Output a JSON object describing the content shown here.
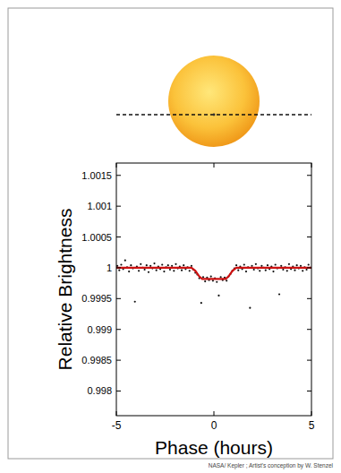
{
  "chart_data": {
    "type": "scatter",
    "xlabel": "Phase (hours)",
    "ylabel": "Relative Brightness",
    "annotations": [
      "NASA/ Kepler ; Artist's conception by W. Stenzel"
    ],
    "xlim": [
      -5,
      5
    ],
    "xticks": [
      -5,
      0,
      5
    ],
    "ylim": [
      0.9976,
      1.0017
    ],
    "yticks": [
      0.998,
      0.9985,
      0.999,
      0.9995,
      1,
      1.0005,
      1.001,
      1.0015
    ],
    "grid": false,
    "series": [
      {
        "type": "scatter",
        "color": "#111111",
        "marker": "dot",
        "x": [
          -4.95,
          -4.85,
          -4.75,
          -4.65,
          -4.55,
          -4.45,
          -4.35,
          -4.25,
          -4.15,
          -4.05,
          -3.95,
          -3.85,
          -3.75,
          -3.65,
          -3.55,
          -3.45,
          -3.35,
          -3.25,
          -3.15,
          -3.05,
          -2.95,
          -2.85,
          -2.75,
          -2.65,
          -2.55,
          -2.45,
          -2.35,
          -2.25,
          -2.15,
          -2.05,
          -1.95,
          -1.85,
          -1.75,
          -1.65,
          -1.55,
          -1.45,
          -1.35,
          -1.25,
          -1.15,
          -1.05,
          -0.95,
          -0.85,
          -0.75,
          -0.65,
          -0.55,
          -0.45,
          -0.35,
          -0.25,
          -0.15,
          -0.05,
          0.05,
          0.15,
          0.25,
          0.35,
          0.45,
          0.55,
          0.65,
          0.75,
          0.85,
          0.95,
          1.05,
          1.15,
          1.25,
          1.35,
          1.45,
          1.55,
          1.65,
          1.75,
          1.85,
          1.95,
          2.05,
          2.15,
          2.25,
          2.35,
          2.45,
          2.55,
          2.65,
          2.75,
          2.85,
          2.95,
          3.05,
          3.15,
          3.25,
          3.35,
          3.45,
          3.55,
          3.65,
          3.75,
          3.85,
          3.95,
          4.05,
          4.15,
          4.25,
          4.35,
          4.45,
          4.55,
          4.65,
          4.75,
          4.85,
          4.95
        ],
        "values": [
          1.00003,
          0.99996,
          1.00005,
          0.99998,
          1.00012,
          1.00001,
          0.99994,
          1.00004,
          0.99999,
          0.99945,
          1.00002,
          0.99995,
          1.00006,
          1.0,
          0.99997,
          1.00004,
          0.99993,
          1.00003,
          0.99999,
          1.00007,
          0.99996,
          1.00002,
          0.99998,
          1.00005,
          0.99994,
          1.00001,
          1.00004,
          0.99997,
          1.00003,
          0.99995,
          1.00006,
          0.99999,
          1.00002,
          0.99996,
          1.00004,
          0.99998,
          1.00001,
          0.99995,
          1.00003,
          0.99997,
          0.99992,
          0.99989,
          0.99983,
          0.99943,
          0.99985,
          0.99978,
          0.99984,
          0.9998,
          0.99986,
          0.99979,
          0.99983,
          0.99977,
          0.99955,
          0.99985,
          0.9998,
          0.99984,
          0.99979,
          0.99986,
          0.9999,
          0.99995,
          0.99999,
          1.00004,
          0.99996,
          1.00002,
          0.99998,
          1.00005,
          0.99994,
          1.00001,
          0.99935,
          1.00003,
          0.99997,
          1.00006,
          0.99999,
          0.99995,
          1.00003,
          1.0,
          0.99996,
          1.00004,
          0.99998,
          1.00002,
          0.99994,
          1.00005,
          0.99999,
          0.99957,
          1.00003,
          0.99997,
          1.00001,
          0.99995,
          1.00006,
          0.99998,
          1.00002,
          0.99996,
          1.00004,
          0.99999,
          1.00003,
          0.99995,
          1.00001,
          0.99997,
          1.00005,
          1.0
        ]
      },
      {
        "type": "line",
        "color": "#cc1111",
        "line_style": "solid",
        "x": [
          -5,
          -1.15,
          -0.95,
          -0.75,
          -0.6,
          0.6,
          0.75,
          0.95,
          1.15,
          5
        ],
        "values": [
          1,
          1,
          0.99995,
          0.99986,
          0.99982,
          0.99982,
          0.99986,
          0.99995,
          1,
          1
        ]
      }
    ]
  }
}
